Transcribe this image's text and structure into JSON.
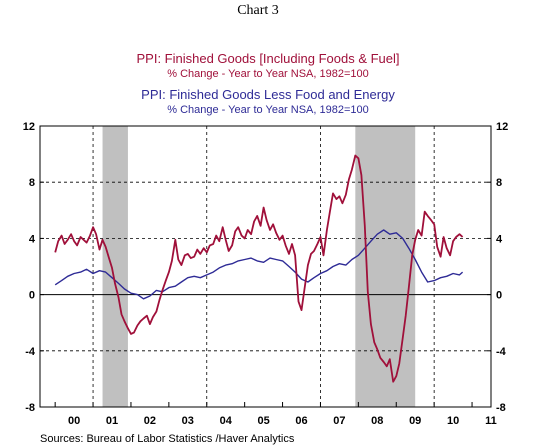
{
  "chart_data": {
    "type": "line",
    "title": "Chart 3",
    "series": [
      {
        "name": "PPI: Finished Goods [Including Foods & Fuel]",
        "subtitle": "% Change - Year to Year     NSA, 1982=100",
        "color": "#a0103a",
        "x": [
          2000.0,
          2000.08,
          2000.17,
          2000.25,
          2000.33,
          2000.42,
          2000.5,
          2000.58,
          2000.67,
          2000.75,
          2000.83,
          2000.92,
          2001.0,
          2001.08,
          2001.17,
          2001.25,
          2001.33,
          2001.42,
          2001.5,
          2001.58,
          2001.67,
          2001.75,
          2001.83,
          2001.92,
          2002.0,
          2002.08,
          2002.17,
          2002.25,
          2002.33,
          2002.42,
          2002.5,
          2002.58,
          2002.67,
          2002.75,
          2002.83,
          2002.92,
          2003.0,
          2003.08,
          2003.17,
          2003.25,
          2003.33,
          2003.42,
          2003.5,
          2003.58,
          2003.67,
          2003.75,
          2003.83,
          2003.92,
          2004.0,
          2004.08,
          2004.17,
          2004.25,
          2004.33,
          2004.42,
          2004.5,
          2004.58,
          2004.67,
          2004.75,
          2004.83,
          2004.92,
          2005.0,
          2005.08,
          2005.17,
          2005.25,
          2005.33,
          2005.42,
          2005.5,
          2005.58,
          2005.67,
          2005.75,
          2005.83,
          2005.92,
          2006.0,
          2006.08,
          2006.17,
          2006.25,
          2006.33,
          2006.42,
          2006.5,
          2006.58,
          2006.67,
          2006.75,
          2006.83,
          2006.92,
          2007.0,
          2007.08,
          2007.17,
          2007.25,
          2007.33,
          2007.42,
          2007.5,
          2007.58,
          2007.67,
          2007.75,
          2007.83,
          2007.92,
          2008.0,
          2008.08,
          2008.17,
          2008.25,
          2008.33,
          2008.42,
          2008.5,
          2008.58,
          2008.67,
          2008.75,
          2008.83,
          2008.92,
          2009.0,
          2009.08,
          2009.17,
          2009.25,
          2009.33,
          2009.42,
          2009.5,
          2009.58,
          2009.67,
          2009.75,
          2009.83,
          2009.92,
          2010.0,
          2010.08,
          2010.17,
          2010.25,
          2010.33,
          2010.42,
          2010.5,
          2010.58,
          2010.67,
          2010.75
        ],
        "y": [
          3.0,
          3.8,
          4.2,
          3.6,
          3.9,
          4.3,
          3.8,
          3.5,
          4.1,
          3.9,
          3.7,
          4.2,
          4.8,
          4.3,
          3.2,
          3.9,
          3.4,
          2.6,
          1.9,
          0.8,
          -0.2,
          -1.4,
          -1.9,
          -2.4,
          -2.8,
          -2.7,
          -2.2,
          -1.9,
          -1.7,
          -1.5,
          -2.1,
          -1.6,
          -1.2,
          -0.4,
          0.3,
          1.0,
          1.6,
          2.4,
          3.9,
          2.5,
          2.1,
          2.8,
          2.9,
          2.6,
          2.7,
          3.2,
          2.9,
          3.3,
          3.0,
          3.5,
          3.6,
          4.2,
          3.8,
          4.8,
          3.9,
          3.1,
          3.5,
          4.5,
          4.8,
          4.2,
          4.0,
          4.6,
          4.3,
          5.2,
          5.6,
          4.9,
          6.2,
          5.3,
          4.6,
          5.0,
          4.4,
          3.9,
          4.2,
          3.5,
          2.9,
          3.6,
          2.8,
          -0.5,
          -1.1,
          0.4,
          2.1,
          2.9,
          3.1,
          3.6,
          4.1,
          2.8,
          4.6,
          5.9,
          7.2,
          6.8,
          7.0,
          6.5,
          7.1,
          8.2,
          8.9,
          9.9,
          9.7,
          8.5,
          4.9,
          0.2,
          -2.1,
          -3.4,
          -3.9,
          -4.5,
          -4.8,
          -5.1,
          -4.6,
          -6.2,
          -5.8,
          -4.9,
          -3.1,
          -1.5,
          0.5,
          2.8,
          3.9,
          4.6,
          4.2,
          5.9,
          5.6,
          5.3,
          5.0,
          3.4,
          2.7,
          4.1,
          3.3,
          2.8,
          3.8,
          4.1,
          4.3,
          4.1
        ],
        "label_display_note": ""
      },
      {
        "name": "PPI: Finished Goods Less Food and Energy",
        "subtitle": "% Change - Year to Year     NSA, 1982=100",
        "color": "#2e2b96",
        "x": [
          2000.0,
          2000.17,
          2000.33,
          2000.5,
          2000.67,
          2000.83,
          2001.0,
          2001.17,
          2001.33,
          2001.5,
          2001.67,
          2001.83,
          2002.0,
          2002.17,
          2002.33,
          2002.5,
          2002.67,
          2002.83,
          2003.0,
          2003.17,
          2003.33,
          2003.5,
          2003.67,
          2003.83,
          2004.0,
          2004.17,
          2004.33,
          2004.5,
          2004.67,
          2004.83,
          2005.0,
          2005.17,
          2005.33,
          2005.5,
          2005.67,
          2005.83,
          2006.0,
          2006.17,
          2006.33,
          2006.5,
          2006.67,
          2006.83,
          2007.0,
          2007.17,
          2007.33,
          2007.5,
          2007.67,
          2007.83,
          2008.0,
          2008.17,
          2008.33,
          2008.5,
          2008.67,
          2008.83,
          2009.0,
          2009.17,
          2009.33,
          2009.5,
          2009.67,
          2009.83,
          2010.0,
          2010.17,
          2010.33,
          2010.5,
          2010.67,
          2010.75
        ],
        "y": [
          0.7,
          1.0,
          1.3,
          1.5,
          1.6,
          1.8,
          1.5,
          1.7,
          1.6,
          1.2,
          0.8,
          0.4,
          0.1,
          0.0,
          -0.3,
          -0.1,
          0.3,
          0.2,
          0.5,
          0.6,
          0.9,
          1.2,
          1.3,
          1.2,
          1.4,
          1.6,
          1.9,
          2.1,
          2.2,
          2.4,
          2.5,
          2.6,
          2.4,
          2.3,
          2.6,
          2.5,
          2.4,
          2.0,
          1.6,
          1.1,
          0.9,
          1.2,
          1.5,
          1.7,
          2.0,
          2.2,
          2.1,
          2.5,
          2.8,
          3.3,
          3.8,
          4.3,
          4.6,
          4.3,
          4.4,
          4.0,
          3.3,
          2.5,
          1.6,
          0.9,
          1.0,
          1.2,
          1.3,
          1.5,
          1.4,
          1.6
        ]
      }
    ],
    "xlim": [
      1999.6,
      2011.5
    ],
    "ylim": [
      -8,
      12
    ],
    "yticks": [
      -8,
      -4,
      0,
      4,
      8,
      12
    ],
    "ytick_labels": [
      "-8",
      "-4",
      "0",
      "4",
      "8",
      "12"
    ],
    "xtick_labels": [
      "00",
      "01",
      "02",
      "03",
      "04",
      "05",
      "06",
      "07",
      "08",
      "09",
      "10",
      "11"
    ],
    "recessions": [
      [
        2001.25,
        2001.92
      ],
      [
        2007.92,
        2009.5
      ]
    ],
    "grid": "dashed",
    "source": "Sources:  Bureau of Labor Statistics /Haver Analytics"
  }
}
